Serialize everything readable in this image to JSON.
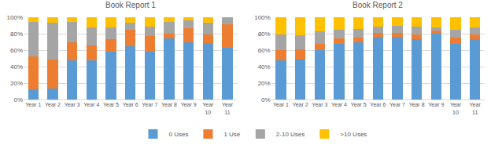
{
  "chart_data": [
    {
      "type": "bar",
      "title": "Book Report 1",
      "stacked": true,
      "grid": true,
      "legend": "bottom",
      "categories": [
        "Year 1",
        "Year 2",
        "Year 3",
        "Year 4",
        "Year 5",
        "Year 6",
        "Year 7",
        "Year 8",
        "Year 9",
        "Year 10",
        "Year 11"
      ],
      "series": [
        {
          "name": "0 Uses",
          "color": "#5b9bd5",
          "values": [
            12,
            13,
            48,
            48,
            58,
            65,
            58,
            74,
            70,
            69,
            63
          ]
        },
        {
          "name": "1 Use",
          "color": "#ed7d31",
          "values": [
            40,
            36,
            22,
            18,
            15,
            20,
            19,
            6,
            17,
            10,
            28
          ]
        },
        {
          "name": "2-10 Uses",
          "color": "#a5a5a5",
          "values": [
            42,
            44,
            24,
            22,
            15,
            8,
            12,
            14,
            9,
            14,
            9
          ]
        },
        {
          "name": ">10 Uses",
          "color": "#ffc000",
          "values": [
            6,
            7,
            6,
            12,
            12,
            7,
            11,
            6,
            4,
            7,
            0
          ]
        }
      ],
      "ylim": [
        0,
        100
      ],
      "yticks": [
        {
          "value": 0,
          "label": "0%"
        },
        {
          "value": 20,
          "label": "20%"
        },
        {
          "value": 40,
          "label": "40%"
        },
        {
          "value": 60,
          "label": "60%"
        },
        {
          "value": 80,
          "label": "80%"
        },
        {
          "value": 100,
          "label": "100%"
        }
      ]
    },
    {
      "type": "bar",
      "title": "Book Report 2",
      "stacked": true,
      "grid": true,
      "legend": "bottom",
      "categories": [
        "Year 1",
        "Year 2",
        "Year 3",
        "Year 4",
        "Year 5",
        "Year 6",
        "Year 7",
        "Year 8",
        "Year 9",
        "Year 10",
        "Year 11"
      ],
      "series": [
        {
          "name": "0 Uses",
          "color": "#5b9bd5",
          "values": [
            48,
            49,
            60,
            68,
            70,
            76,
            76,
            73,
            80,
            68,
            73
          ]
        },
        {
          "name": "1 Use",
          "color": "#ed7d31",
          "values": [
            12,
            12,
            8,
            6,
            5,
            5,
            5,
            6,
            4,
            7,
            6
          ]
        },
        {
          "name": "2-10 Uses",
          "color": "#a5a5a5",
          "values": [
            19,
            17,
            15,
            11,
            11,
            8,
            9,
            10,
            4,
            10,
            9
          ]
        },
        {
          "name": ">10 Uses",
          "color": "#ffc000",
          "values": [
            21,
            22,
            17,
            15,
            14,
            11,
            10,
            11,
            12,
            15,
            12
          ]
        }
      ],
      "ylim": [
        0,
        100
      ],
      "yticks": [
        {
          "value": 0,
          "label": "0%"
        },
        {
          "value": 20,
          "label": "20%"
        },
        {
          "value": 40,
          "label": "40%"
        },
        {
          "value": 60,
          "label": "60%"
        },
        {
          "value": 80,
          "label": "80%"
        },
        {
          "value": 100,
          "label": "100%"
        }
      ]
    }
  ]
}
